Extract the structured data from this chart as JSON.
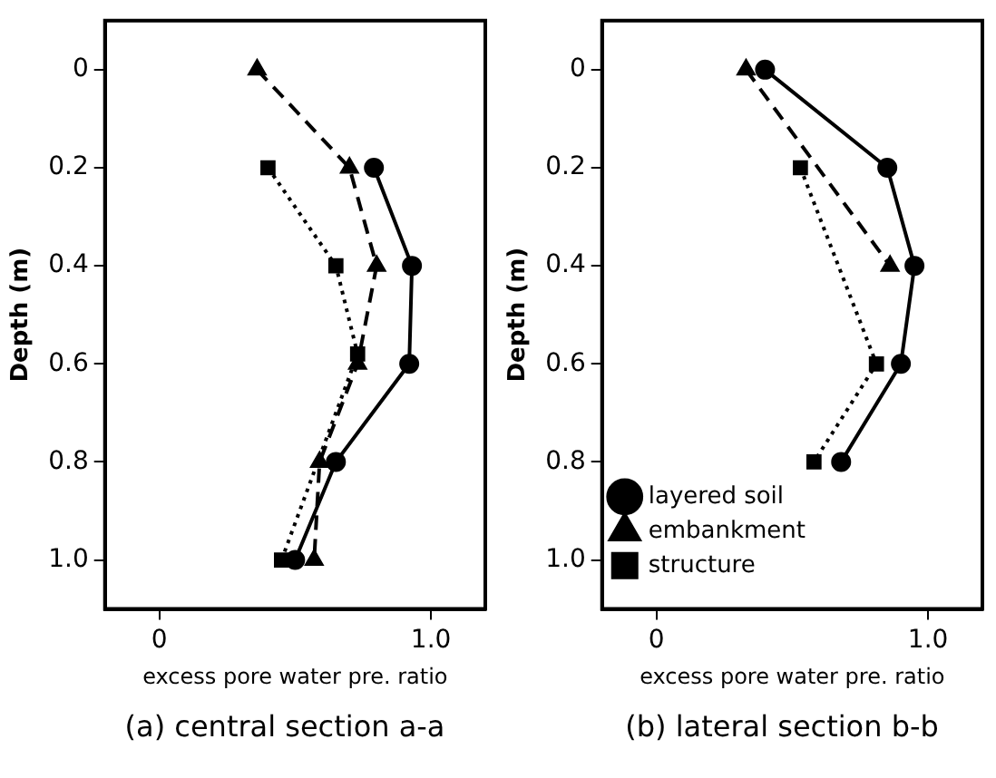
{
  "chart_data": [
    {
      "type": "line",
      "title": "(a) central section a-a",
      "xlabel": "excess pore water pre. ratio",
      "ylabel": "Depth (m)",
      "xlim": [
        -0.2,
        1.2
      ],
      "ylim": [
        1.1,
        -0.1
      ],
      "xticks": [
        0,
        {
          "value": 1,
          "label": "1.0"
        }
      ],
      "yticks": [
        0,
        0.2,
        0.4,
        0.6,
        0.8,
        {
          "value": 1,
          "label": "1.0"
        }
      ],
      "grid": false,
      "legend": false,
      "series": [
        {
          "color": "#000000",
          "marker": "circle",
          "line_style": "solid",
          "x": [
            0.79,
            0.93,
            0.92,
            0.65,
            0.5
          ],
          "values": [
            0.2,
            0.4,
            0.6,
            0.8,
            1.0
          ]
        },
        {
          "color": "#000000",
          "marker": "triangle",
          "line_style": "dashed",
          "x": [
            0.36,
            0.7,
            0.8,
            0.73,
            0.59,
            0.57
          ],
          "values": [
            0,
            0.2,
            0.4,
            0.6,
            0.8,
            1.0
          ]
        },
        {
          "color": "#000000",
          "marker": "square",
          "line_style": "dotted",
          "x": [
            0.4,
            0.65,
            0.73,
            0.45
          ],
          "values": [
            0.2,
            0.4,
            0.58,
            1.0
          ]
        }
      ]
    },
    {
      "type": "line",
      "title": "(b) lateral section b-b",
      "xlabel": "excess pore water pre. ratio",
      "ylabel": "Depth (m)",
      "xlim": [
        -0.2,
        1.2
      ],
      "ylim": [
        1.1,
        -0.1
      ],
      "xticks": [
        0,
        {
          "value": 1,
          "label": "1.0"
        }
      ],
      "yticks": [
        0,
        0.2,
        0.4,
        0.6,
        0.8,
        {
          "value": 1,
          "label": "1.0"
        }
      ],
      "grid": false,
      "legend": "bottom left",
      "series": [
        {
          "name": "layered soil",
          "color": "#000000",
          "marker": "circle",
          "line_style": "solid",
          "x": [
            0.4,
            0.85,
            0.95,
            0.9,
            0.68
          ],
          "values": [
            0,
            0.2,
            0.4,
            0.6,
            0.8
          ]
        },
        {
          "name": "embankment",
          "color": "#000000",
          "marker": "triangle",
          "line_style": "dashed",
          "x": [
            0.33,
            0.86
          ],
          "values": [
            0,
            0.4
          ]
        },
        {
          "name": "structure",
          "color": "#000000",
          "marker": "square",
          "line_style": "dotted",
          "x": [
            0.53,
            0.81,
            0.58
          ],
          "values": [
            0.2,
            0.6,
            0.8
          ]
        }
      ]
    }
  ]
}
